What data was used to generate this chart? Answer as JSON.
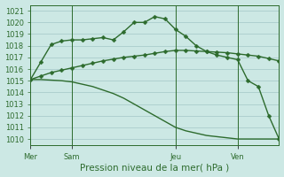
{
  "bg_color": "#cce8e4",
  "grid_color": "#aacccc",
  "line_color": "#2d6b2d",
  "marker": "D",
  "markersize": 2.5,
  "linewidth": 1.0,
  "xlabel": "Pression niveau de la mer( hPa )",
  "ylim": [
    1009.5,
    1021.5
  ],
  "yticks": [
    1010,
    1011,
    1012,
    1013,
    1014,
    1015,
    1016,
    1017,
    1018,
    1019,
    1020,
    1021
  ],
  "day_labels": [
    "Mer",
    "Sam",
    "Jeu",
    "Ven"
  ],
  "day_positions": [
    0,
    4,
    14,
    20
  ],
  "vline_positions": [
    0,
    4,
    14,
    20
  ],
  "num_points": 25,
  "line1": [
    1015.1,
    1016.6,
    1018.1,
    1018.4,
    1018.5,
    1018.5,
    1018.6,
    1018.7,
    1018.5,
    1019.2,
    1020.0,
    1020.0,
    1020.5,
    1020.3,
    1019.4,
    1018.8,
    1018.0,
    1017.5,
    1017.2,
    1017.0,
    1016.8,
    1015.0,
    1014.5,
    1012.0,
    1010.0
  ],
  "line2": [
    1015.1,
    1015.4,
    1015.7,
    1015.9,
    1016.1,
    1016.3,
    1016.5,
    1016.7,
    1016.85,
    1017.0,
    1017.1,
    1017.2,
    1017.35,
    1017.5,
    1017.6,
    1017.6,
    1017.55,
    1017.5,
    1017.45,
    1017.4,
    1017.3,
    1017.2,
    1017.1,
    1016.9,
    1016.7
  ],
  "line3": [
    1015.1,
    1015.1,
    1015.05,
    1015.0,
    1014.9,
    1014.7,
    1014.5,
    1014.2,
    1013.9,
    1013.5,
    1013.0,
    1012.5,
    1012.0,
    1011.5,
    1011.0,
    1010.7,
    1010.5,
    1010.3,
    1010.2,
    1010.1,
    1010.0,
    1010.0,
    1010.0,
    1010.0,
    1010.0
  ],
  "tick_fontsize": 6.0,
  "label_fontsize": 7.5
}
